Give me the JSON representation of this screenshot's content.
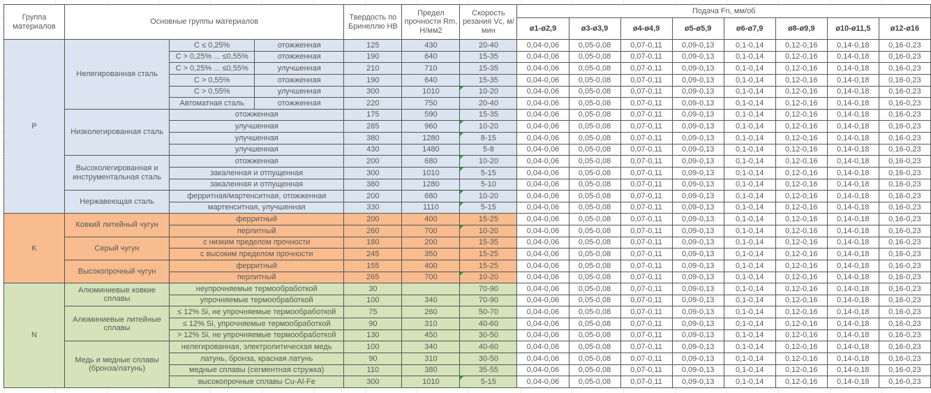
{
  "header": {
    "col_group": "Группа материалов",
    "col_materials": "Основные группы материалов",
    "col_hardness": "Твердость по Бринеллю HB",
    "col_strength": "Предел прочности Rm, Н/мм2",
    "col_speed": "Скорость резания Vc, м/мин",
    "col_feed": "Подача Fn, мм/об",
    "feed_columns": [
      "ø1-ø2,9",
      "ø3-ø3,9",
      "ø4-ø4,9",
      "ø5-ø5,9",
      "ø6-ø7,9",
      "ø8-ø9,9",
      "ø10-ø11,5",
      "ø12-ø16"
    ]
  },
  "feed_values": [
    "0,04-0,06",
    "0,05-0,08",
    "0,07-0,11",
    "0,09-0,13",
    "0,1-0,14",
    "0,12-0,16",
    "0,14-0,18",
    "0,16-0,23"
  ],
  "colors": {
    "group_p": "#dbe5f1",
    "group_k": "#f8bc8e",
    "group_n": "#d5e3ba",
    "error_flag": "#23a52c",
    "border": "#555555",
    "text": "#595959"
  },
  "groups": [
    {
      "code": "P",
      "families": [
        {
          "name": "Нелегированная сталь",
          "rows": [
            {
              "sub": "C ≤ 0,25%",
              "state": "отожженная",
              "hb": "125",
              "rm": "430",
              "vc": "20-40",
              "flag": false
            },
            {
              "sub": "C > 0,25% ... ≤0,55%",
              "state": "отожженная",
              "hb": "190",
              "rm": "640",
              "vc": "15-35",
              "flag": false
            },
            {
              "sub": "C > 0,25% ... ≤0,55%",
              "state": "улучшенная",
              "hb": "210",
              "rm": "710",
              "vc": "15-35",
              "flag": false
            },
            {
              "sub": "C > 0,55%",
              "state": "отожженная",
              "hb": "190",
              "rm": "640",
              "vc": "15-35",
              "flag": false
            },
            {
              "sub": "C > 0,55%",
              "state": "улучшенная",
              "hb": "300",
              "rm": "1010",
              "vc": "10-20",
              "flag": true
            },
            {
              "sub": "Автоматная сталь",
              "state": "отожженная",
              "hb": "220",
              "rm": "750",
              "vc": "20-40",
              "flag": false
            }
          ]
        },
        {
          "name": "Низколегированная сталь",
          "rows": [
            {
              "desc": "отожженная",
              "hb": "175",
              "rm": "590",
              "vc": "15-35",
              "flag": false
            },
            {
              "desc": "улучшенная",
              "hb": "285",
              "rm": "960",
              "vc": "10-20",
              "flag": true
            },
            {
              "desc": "улучшенная",
              "hb": "380",
              "rm": "1280",
              "vc": "8-15",
              "flag": true
            },
            {
              "desc": "улучшенная",
              "hb": "430",
              "rm": "1480",
              "vc": "5-8",
              "flag": false
            }
          ]
        },
        {
          "name": "Высоколегированная и инструментальная сталь",
          "rows": [
            {
              "desc": "отожженная",
              "hb": "200",
              "rm": "680",
              "vc": "10-20",
              "flag": true
            },
            {
              "desc": "закаленная и отпущенная",
              "hb": "300",
              "rm": "1010",
              "vc": "5-15",
              "flag": true
            },
            {
              "desc": "закаленная и отпущенная",
              "hb": "380",
              "rm": "1280",
              "vc": "5-10",
              "flag": false
            }
          ]
        },
        {
          "name": "Нержавеющая сталь",
          "rows": [
            {
              "desc": "ферритная/мартенситная, отожженная",
              "hb": "200",
              "rm": "680",
              "vc": "10-20",
              "flag": true
            },
            {
              "desc": "мартенситная, улучшенная",
              "hb": "330",
              "rm": "1110",
              "vc": "5-15",
              "flag": true
            }
          ]
        }
      ]
    },
    {
      "code": "K",
      "families": [
        {
          "name": "Ковкий литейный чугун",
          "rows": [
            {
              "desc": "ферритный",
              "hb": "200",
              "rm": "400",
              "vc": "15-25",
              "flag": false
            },
            {
              "desc": "перлитный",
              "hb": "260",
              "rm": "700",
              "vc": "10-20",
              "flag": true
            }
          ]
        },
        {
          "name": "Серый чугун",
          "rows": [
            {
              "desc": "с низким пределом прочности",
              "hb": "180",
              "rm": "200",
              "vc": "15-35",
              "flag": false
            },
            {
              "desc": "с высоким пределом прочности",
              "hb": "245",
              "rm": "350",
              "vc": "15-25",
              "flag": false
            }
          ]
        },
        {
          "name": "Высокопрочный чугун",
          "rows": [
            {
              "desc": "ферритный",
              "hb": "155",
              "rm": "400",
              "vc": "15-25",
              "flag": false
            },
            {
              "desc": "перлитный",
              "hb": "265",
              "rm": "700",
              "vc": "10-20",
              "flag": true
            }
          ]
        }
      ]
    },
    {
      "code": "N",
      "families": [
        {
          "name": "Алюминиевые ковкие сплавы",
          "rows": [
            {
              "desc": "неупрочняемые термообработкой",
              "hb": "30",
              "rm": "",
              "vc": "70-90",
              "flag": false
            },
            {
              "desc": "упрочняемые термообработкой",
              "hb": "100",
              "rm": "340",
              "vc": "70-90",
              "flag": false
            }
          ]
        },
        {
          "name": "Алюминиевые литейные сплавы",
          "rows": [
            {
              "desc": "≤ 12% Si, не упрочняемые термообработкой",
              "hb": "75",
              "rm": "260",
              "vc": "50-70",
              "flag": false
            },
            {
              "desc": "≤ 12% Si, упрочняемые термообработкой",
              "hb": "90",
              "rm": "310",
              "vc": "40-60",
              "flag": false
            },
            {
              "desc": "> 12% Si, не упрочняемые термообработкой",
              "hb": "130",
              "rm": "450",
              "vc": "30-50",
              "flag": false
            }
          ]
        },
        {
          "name": "Медь и медные сплавы (бронза/латунь)",
          "rows": [
            {
              "desc": "нелегированная, электролитическая медь",
              "hb": "100",
              "rm": "340",
              "vc": "40-60",
              "flag": false
            },
            {
              "desc": "латунь, бронза, красная латунь",
              "hb": "90",
              "rm": "310",
              "vc": "30-50",
              "flag": false
            },
            {
              "desc": "медные сплавы (сегментная стружка)",
              "hb": "110",
              "rm": "380",
              "vc": "35-55",
              "flag": false
            },
            {
              "desc": "высокопрочные сплавы Cu-Al-Fe",
              "hb": "300",
              "rm": "1010",
              "vc": "5-15",
              "flag": true
            }
          ]
        }
      ]
    }
  ]
}
